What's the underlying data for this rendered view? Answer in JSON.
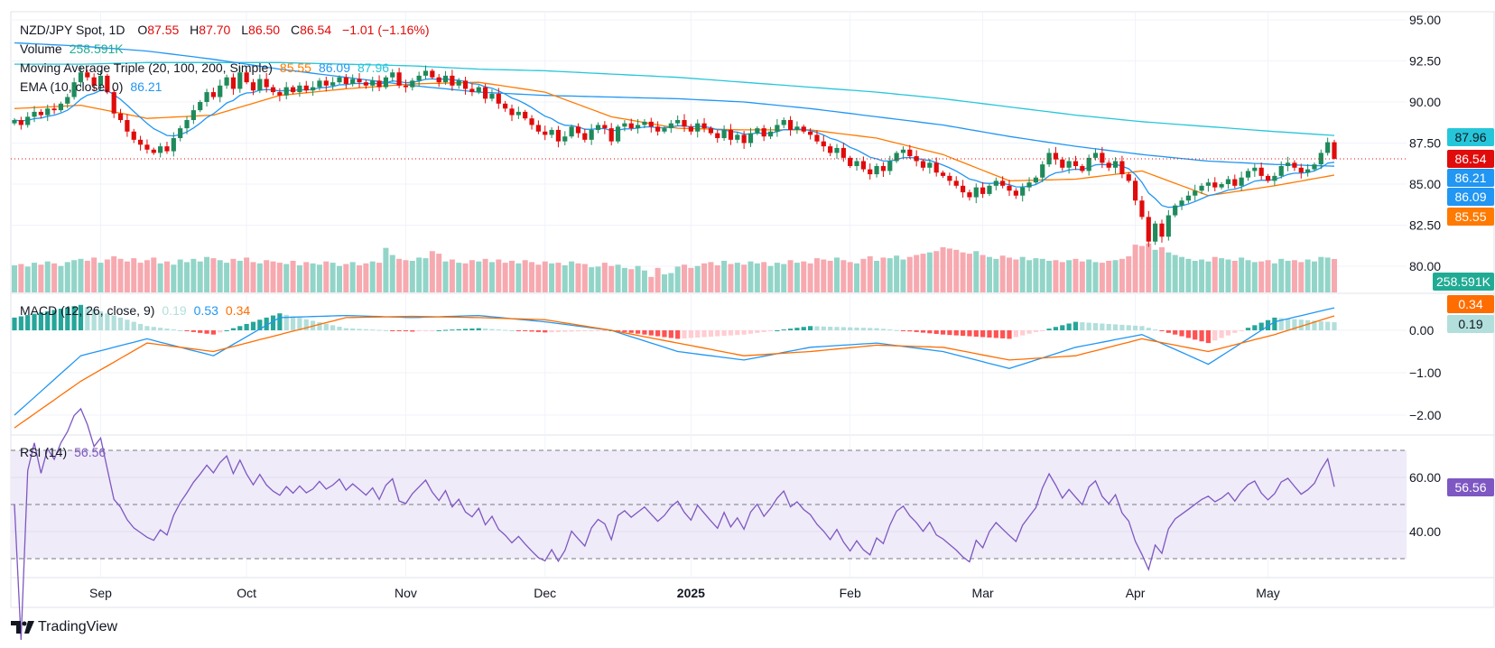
{
  "legend": {
    "symbol": "NZD/JPY Spot, 1D",
    "o_label": "O",
    "open": "87.55",
    "h_label": "H",
    "high": "87.70",
    "l_label": "L",
    "low": "86.50",
    "c_label": "C",
    "close": "86.54",
    "change": "−1.01 (−1.16%)",
    "volume_label": "Volume",
    "volume_value": "258.591K",
    "ma_label": "Moving Average Triple (20, 100, 200, Simple)",
    "ma20": "85.55",
    "ma100": "86.09",
    "ma200": "87.96",
    "ema_label": "EMA (10, close, 0)",
    "ema_value": "86.21",
    "macd_label": "MACD (12, 26, close, 9)",
    "macd_hist": "0.19",
    "macd_value": "0.53",
    "macd_signal": "0.34",
    "rsi_label": "RSI (14)",
    "rsi_value": "56.56"
  },
  "badges": {
    "ma200": "87.96",
    "last": "86.54",
    "ema": "86.21",
    "ma100": "86.09",
    "ma20": "85.55",
    "volume": "258.591K",
    "signal": "0.34",
    "hist": "0.19",
    "rsi": "56.56"
  },
  "colors": {
    "up": "#1f8a5b",
    "down": "#e00b0b",
    "vol_up": "#92d5c8",
    "vol_down": "#f7a9b0",
    "ma20": "#ff7a00",
    "ma100": "#2196f3",
    "ma200": "#26c6da",
    "ema": "#2196f3",
    "macd": "#2196f3",
    "signal": "#ff6d00",
    "hist_up_strong": "#26a69a",
    "hist_up_weak": "#b2dfdb",
    "hist_down_strong": "#ff5252",
    "hist_down_weak": "#ffcdd2",
    "rsi": "#7e57c2",
    "rsi_band": "#efebf8"
  },
  "brand": "TradingView",
  "chart_data": {
    "type": "candlestick",
    "price_axis": {
      "ticks": [
        "95.00",
        "92.50",
        "90.00",
        "87.50",
        "85.00",
        "82.50",
        "80.00"
      ],
      "range": [
        79.5,
        95.5
      ]
    },
    "macd_axis": {
      "ticks": [
        "0.00",
        "−1.00",
        "−2.00"
      ]
    },
    "rsi_axis": {
      "ticks": [
        "60.00",
        "40.00"
      ],
      "levels": [
        70,
        50,
        30
      ]
    },
    "x_labels": [
      "Sep",
      "Oct",
      "Nov",
      "Dec",
      "2025",
      "Feb",
      "Mar",
      "Apr",
      "May"
    ],
    "x_label_index": [
      13,
      35,
      59,
      80,
      102,
      126,
      146,
      169,
      189
    ],
    "close": [
      88.9,
      88.6,
      89.1,
      89.4,
      89.2,
      89.6,
      89.5,
      89.9,
      90.3,
      91.2,
      91.8,
      91.5,
      91.0,
      91.6,
      90.6,
      89.3,
      88.9,
      88.2,
      87.7,
      87.4,
      87.1,
      86.9,
      87.3,
      87.0,
      87.8,
      88.4,
      88.9,
      89.5,
      90.0,
      90.6,
      90.3,
      91.0,
      91.5,
      90.8,
      91.8,
      91.2,
      90.7,
      91.4,
      90.9,
      90.6,
      90.4,
      90.9,
      90.6,
      91.0,
      90.7,
      90.9,
      91.3,
      91.0,
      91.2,
      91.5,
      91.1,
      91.4,
      91.2,
      91.0,
      91.3,
      90.9,
      91.5,
      91.8,
      91.0,
      90.9,
      91.3,
      91.6,
      91.9,
      91.5,
      91.2,
      91.6,
      91.0,
      91.3,
      90.8,
      90.6,
      90.9,
      90.2,
      90.5,
      89.9,
      89.6,
      89.2,
      89.4,
      89.0,
      88.6,
      88.2,
      88.0,
      88.3,
      87.6,
      87.9,
      88.5,
      88.1,
      87.7,
      88.3,
      88.6,
      88.4,
      87.6,
      88.5,
      88.7,
      88.4,
      88.6,
      88.8,
      88.5,
      88.2,
      88.4,
      88.7,
      88.9,
      88.5,
      88.2,
      88.7,
      88.4,
      88.1,
      87.8,
      88.3,
      87.7,
      88.0,
      87.5,
      88.1,
      88.4,
      87.9,
      88.2,
      88.6,
      88.9,
      88.3,
      88.5,
      88.2,
      88.0,
      87.6,
      87.3,
      86.9,
      87.2,
      86.6,
      86.1,
      86.4,
      85.9,
      85.6,
      86.1,
      85.8,
      86.4,
      86.9,
      87.1,
      86.7,
      86.4,
      86.0,
      86.3,
      85.7,
      85.5,
      85.2,
      84.9,
      84.5,
      84.2,
      84.8,
      84.4,
      84.9,
      85.2,
      84.9,
      84.6,
      84.3,
      84.8,
      85.1,
      85.4,
      86.2,
      86.9,
      86.5,
      86.0,
      86.4,
      86.1,
      85.8,
      86.6,
      86.9,
      86.3,
      86.0,
      86.4,
      85.6,
      85.2,
      84.0,
      83.0,
      81.5,
      82.6,
      81.8,
      83.1,
      83.7,
      84.0,
      84.3,
      84.6,
      84.9,
      85.1,
      84.8,
      85.0,
      85.3,
      84.9,
      85.4,
      85.8,
      86.0,
      85.5,
      85.2,
      85.5,
      86.1,
      86.3,
      86.0,
      85.7,
      85.9,
      86.2,
      86.9,
      87.55,
      86.54
    ],
    "last_candle": {
      "open": 87.55,
      "high": 87.7,
      "low": 86.5,
      "close": 86.54
    },
    "volume_k": [
      210,
      220,
      200,
      230,
      215,
      240,
      225,
      205,
      235,
      250,
      260,
      245,
      270,
      230,
      255,
      280,
      260,
      240,
      265,
      230,
      250,
      270,
      225,
      240,
      215,
      255,
      235,
      260,
      240,
      275,
      265,
      250,
      230,
      260,
      245,
      270,
      235,
      225,
      250,
      240,
      230,
      220,
      245,
      210,
      235,
      225,
      215,
      240,
      230,
      205,
      220,
      235,
      210,
      225,
      240,
      230,
      345,
      290,
      260,
      250,
      245,
      270,
      265,
      320,
      300,
      240,
      255,
      230,
      225,
      250,
      240,
      260,
      235,
      255,
      230,
      245,
      225,
      250,
      235,
      215,
      240,
      225,
      230,
      210,
      240,
      225,
      220,
      195,
      200,
      230,
      205,
      215,
      190,
      180,
      205,
      170,
      120,
      190,
      140,
      150,
      200,
      215,
      190,
      205,
      225,
      235,
      210,
      245,
      220,
      230,
      215,
      240,
      225,
      235,
      205,
      230,
      220,
      250,
      230,
      240,
      225,
      265,
      255,
      245,
      270,
      250,
      235,
      225,
      260,
      280,
      245,
      270,
      265,
      285,
      255,
      275,
      290,
      300,
      310,
      320,
      350,
      340,
      330,
      310,
      300,
      320,
      290,
      275,
      260,
      285,
      270,
      255,
      275,
      250,
      265,
      260,
      245,
      250,
      235,
      250,
      260,
      240,
      255,
      235,
      230,
      245,
      250,
      260,
      280,
      370,
      360,
      380,
      330,
      350,
      310,
      290,
      275,
      260,
      245,
      255,
      240,
      275,
      265,
      255,
      245,
      270,
      250,
      235,
      240,
      250,
      225,
      260,
      245,
      250,
      235,
      255,
      240,
      275,
      270,
      258.591
    ],
    "sample_every": 10,
    "sma200": [
      92.3,
      92.3,
      92.4,
      92.4,
      92.4,
      92.3,
      92.2,
      92.0,
      91.9,
      91.7,
      91.5,
      91.2,
      90.9,
      90.6,
      90.2,
      89.7,
      89.2,
      88.8,
      88.5,
      88.2,
      87.96
    ],
    "sma100": [
      93.6,
      93.4,
      93.1,
      92.6,
      92.0,
      91.5,
      91.0,
      90.6,
      90.4,
      90.3,
      90.2,
      90.0,
      89.6,
      89.1,
      88.6,
      87.9,
      87.3,
      86.8,
      86.4,
      86.2,
      86.09
    ],
    "sma20": [
      89.6,
      89.8,
      89.0,
      89.2,
      90.4,
      90.8,
      91.1,
      91.2,
      90.6,
      89.1,
      88.4,
      88.3,
      88.3,
      87.8,
      86.8,
      85.2,
      85.3,
      85.8,
      84.3,
      84.9,
      85.55
    ],
    "macd": [
      -2.0,
      -0.6,
      -0.2,
      -0.6,
      0.3,
      0.35,
      0.3,
      0.35,
      0.2,
      0.0,
      -0.5,
      -0.7,
      -0.4,
      -0.3,
      -0.5,
      -0.9,
      -0.4,
      -0.1,
      -0.8,
      0.2,
      0.53
    ],
    "signal": [
      -2.3,
      -1.2,
      -0.3,
      -0.5,
      -0.1,
      0.3,
      0.33,
      0.3,
      0.25,
      0.0,
      -0.3,
      -0.6,
      -0.5,
      -0.35,
      -0.4,
      -0.7,
      -0.6,
      -0.2,
      -0.5,
      -0.1,
      0.34
    ]
  }
}
